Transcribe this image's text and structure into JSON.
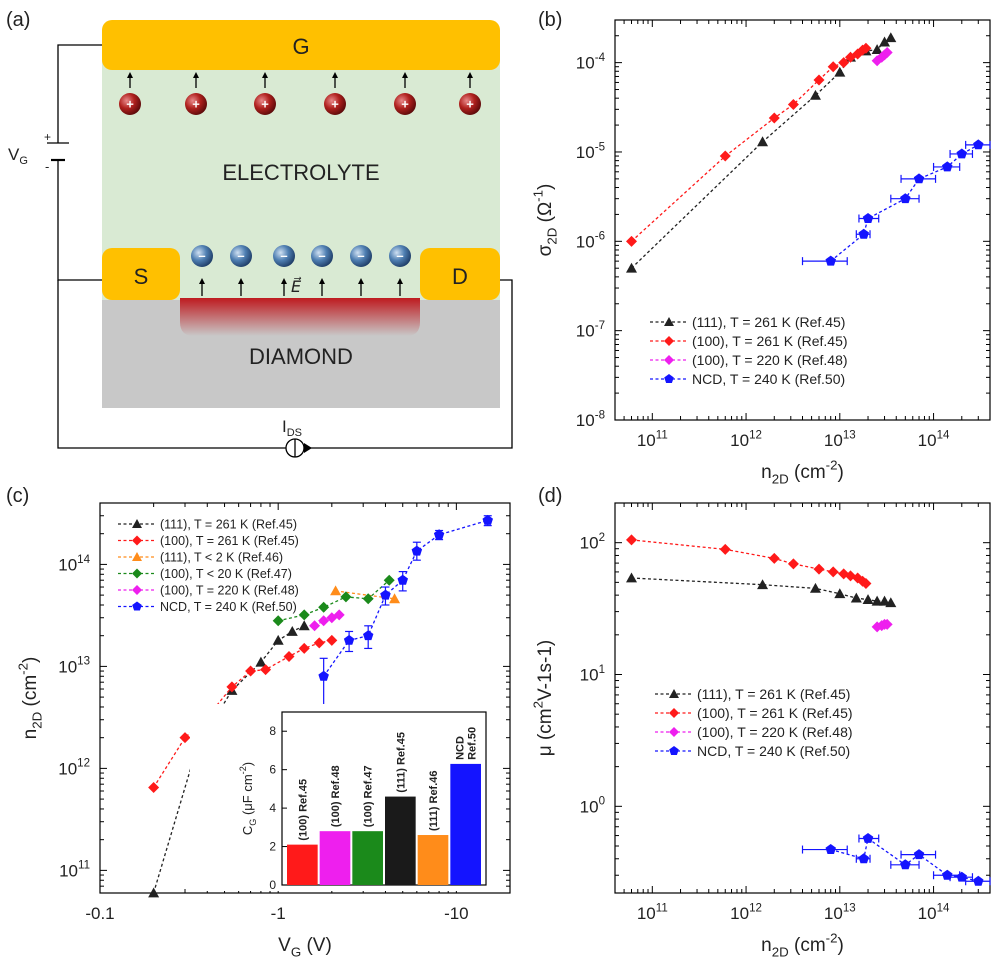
{
  "panel_labels": {
    "a": "(a)",
    "b": "(b)",
    "c": "(c)",
    "d": "(d)"
  },
  "schematic": {
    "gate_label": "G",
    "source_label": "S",
    "drain_label": "D",
    "electrolyte_label": "ELECTROLYTE",
    "diamond_label": "DIAMOND",
    "field_label": "E⃗",
    "vg_label": "V",
    "vg_sub": "G",
    "ids_label": "I",
    "ids_sub": "DS",
    "cation_sign": "+",
    "anion_sign": "–",
    "battery_plus": "+",
    "battery_minus": "-",
    "colors": {
      "gate": "#FFC000",
      "electrolyte": "#D9EAD3",
      "diamond": "#C8C8C8",
      "channel": "#C0161C",
      "cation": "#B0211E",
      "anion": "#4F7FB2"
    }
  },
  "chart_data": [
    {
      "id": "b",
      "type": "scatter",
      "xscale": "log",
      "yscale": "log",
      "xlim": [
        40000000000.0,
        400000000000000.0
      ],
      "ylim": [
        1e-08,
        0.0003
      ],
      "xticks": [
        100000000000.0,
        1000000000000.0,
        10000000000000.0,
        100000000000000.0
      ],
      "xtick_labels": [
        [
          "10",
          "11"
        ],
        [
          "10",
          "12"
        ],
        [
          "10",
          "13"
        ],
        [
          "10",
          "14"
        ]
      ],
      "yticks": [
        1e-08,
        1e-07,
        1e-06,
        1e-05,
        0.0001
      ],
      "ytick_labels": [
        [
          "10",
          "-8"
        ],
        [
          "10",
          "-7"
        ],
        [
          "10",
          "-6"
        ],
        [
          "10",
          "-5"
        ],
        [
          "10",
          "-4"
        ]
      ],
      "xlabel": {
        "main": "n",
        "sub": "2D",
        "unit": " (cm",
        "sup": "-2",
        "end": ")"
      },
      "ylabel": {
        "main": "σ",
        "sub": "2D",
        "unit": " (Ω",
        "sup": "-1",
        "end": ")"
      },
      "legend_position": "bottom-left",
      "series": [
        {
          "name": "(111), T = 261 K (Ref.45)",
          "color": "#222222",
          "marker": "triangle",
          "x": [
            60000000000.0,
            1500000000000.0,
            5500000000000.0,
            10000000000000.0,
            13000000000000.0,
            19000000000000.0,
            25000000000000.0,
            30000000000000.0,
            35000000000000.0
          ],
          "y": [
            5e-07,
            1.3e-05,
            4.3e-05,
            7.8e-05,
            0.000115,
            0.000135,
            0.00014,
            0.00017,
            0.00019
          ]
        },
        {
          "name": "(100), T = 261 K (Ref.45)",
          "color": "#FF1A1A",
          "marker": "diamond",
          "x": [
            60000000000.0,
            600000000000.0,
            2000000000000.0,
            3200000000000.0,
            6000000000000.0,
            8500000000000.0,
            11000000000000.0,
            13000000000000.0,
            15500000000000.0,
            17500000000000.0,
            19000000000000.0
          ],
          "y": [
            1e-06,
            9e-06,
            2.4e-05,
            3.4e-05,
            6.4e-05,
            9e-05,
            0.0001,
            0.000115,
            0.000125,
            0.000138,
            0.000145
          ]
        },
        {
          "name": "(100), T = 220 K (Ref.48)",
          "color": "#EE1FEE",
          "marker": "diamond",
          "x": [
            25000000000000.0,
            28000000000000.0,
            30000000000000.0,
            32000000000000.0
          ],
          "y": [
            0.000105,
            0.000115,
            0.000122,
            0.00013
          ]
        },
        {
          "name": "NCD, T = 240 K (Ref.50)",
          "color": "#1414FF",
          "marker": "pentagon",
          "x": [
            8000000000000.0,
            18000000000000.0,
            20000000000000.0,
            50000000000000.0,
            70000000000000.0,
            140000000000000.0,
            200000000000000.0,
            300000000000000.0
          ],
          "y": [
            6e-07,
            1.2e-06,
            1.8e-06,
            3e-06,
            5e-06,
            6.8e-06,
            9.5e-06,
            1.2e-05
          ],
          "xerr_lo": [
            4000000000000.0,
            3000000000000.0,
            4000000000000.0,
            15000000000000.0,
            25000000000000.0,
            40000000000000.0,
            50000000000000.0,
            80000000000000.0
          ],
          "xerr_hi": [
            4000000000000.0,
            3000000000000.0,
            6000000000000.0,
            20000000000000.0,
            35000000000000.0,
            50000000000000.0,
            60000000000000.0,
            100000000000000.0
          ]
        }
      ]
    },
    {
      "id": "c",
      "type": "scatter",
      "xscale": "log",
      "yscale": "log",
      "xlim": [
        0.1,
        20
      ],
      "ylim": [
        60000000000.0,
        400000000000000.0
      ],
      "xticks": [
        0.1,
        1,
        10
      ],
      "xtick_labels": [
        [
          "-0.1",
          ""
        ],
        [
          "-1",
          ""
        ],
        [
          "-10",
          ""
        ]
      ],
      "yticks": [
        100000000000.0,
        1000000000000.0,
        10000000000000.0,
        100000000000000.0
      ],
      "ytick_labels": [
        [
          "10",
          "11"
        ],
        [
          "10",
          "12"
        ],
        [
          "10",
          "13"
        ],
        [
          "10",
          "14"
        ]
      ],
      "xlabel": {
        "main": "V",
        "sub": "G",
        "unit": " (V)",
        "sup": "",
        "end": ""
      },
      "ylabel": {
        "main": "n",
        "sub": "2D",
        "unit": " (cm",
        "sup": "-2",
        "end": ")"
      },
      "legend_position": "top-left",
      "series": [
        {
          "name": "(111), T = 261 K (Ref.45)",
          "color": "#222222",
          "marker": "triangle",
          "x": [
            0.2,
            0.35,
            0.55,
            0.8,
            1,
            1.2,
            1.4
          ],
          "y": [
            60000000000.0,
            1600000000000.0,
            5800000000000.0,
            11000000000000.0,
            18000000000000.0,
            22000000000000.0,
            25000000000000.0
          ]
        },
        {
          "name": "(100), T = 261 K (Ref.45)",
          "color": "#FF1A1A",
          "marker": "diamond",
          "x": [
            0.2,
            0.3,
            0.4,
            0.55,
            0.7,
            0.85,
            1.15,
            1.4,
            1.7,
            2
          ],
          "y": [
            650000000000.0,
            2000000000000.0,
            3200000000000.0,
            6300000000000.0,
            9000000000000.0,
            9300000000000.0,
            12500000000000.0,
            15000000000000.0,
            17000000000000.0,
            18000000000000.0
          ]
        },
        {
          "name": "(111), T < 2 K    (Ref.46)",
          "color": "#FF8C1A",
          "marker": "triangle",
          "x": [
            2.1,
            4.5
          ],
          "y": [
            55000000000000.0,
            46000000000000.0
          ]
        },
        {
          "name": "(100), T < 20 K   (Ref.47)",
          "color": "#1B8A1B",
          "marker": "diamond",
          "x": [
            1,
            1.4,
            1.8,
            2.4,
            3.2,
            4.2
          ],
          "y": [
            28000000000000.0,
            32000000000000.0,
            38000000000000.0,
            48000000000000.0,
            46000000000000.0,
            70000000000000.0
          ]
        },
        {
          "name": "(100), T = 220 K (Ref.48)",
          "color": "#EE1FEE",
          "marker": "diamond",
          "x": [
            1.6,
            1.8,
            2,
            2.2
          ],
          "y": [
            25000000000000.0,
            28000000000000.0,
            30000000000000.0,
            32000000000000.0
          ]
        },
        {
          "name": "NCD, T = 240 K (Ref.50)",
          "color": "#1414FF",
          "marker": "pentagon",
          "x": [
            1.8,
            2.5,
            3.2,
            4,
            5,
            6,
            8,
            15
          ],
          "y": [
            8000000000000.0,
            18000000000000.0,
            20000000000000.0,
            50000000000000.0,
            70000000000000.0,
            135000000000000.0,
            195000000000000.0,
            270000000000000.0
          ],
          "yerr_lo": [
            4000000000000.0,
            4000000000000.0,
            5000000000000.0,
            10000000000000.0,
            15000000000000.0,
            25000000000000.0,
            20000000000000.0,
            30000000000000.0
          ],
          "yerr_hi": [
            4000000000000.0,
            4000000000000.0,
            5000000000000.0,
            10000000000000.0,
            15000000000000.0,
            30000000000000.0,
            20000000000000.0,
            30000000000000.0
          ]
        }
      ]
    },
    {
      "id": "c-inset",
      "type": "bar",
      "ylim": [
        0,
        9
      ],
      "yticks": [
        0,
        2,
        4,
        6,
        8
      ],
      "ylabel": {
        "main": "C",
        "sub": "G",
        "unit": " (μF cm",
        "sup": "-2",
        "end": ")"
      },
      "categories": [
        "(100) Ref.45",
        "(100) Ref.48",
        "(100) Ref.47",
        "(111) Ref.45",
        "(111) Ref.46",
        "NCD Ref.50"
      ],
      "label_lines": [
        [
          "(100) Ref.45"
        ],
        [
          "(100) Ref.48"
        ],
        [
          "(100) Ref.47"
        ],
        [
          "(111) Ref.45"
        ],
        [
          "(111) Ref.46"
        ],
        [
          "NCD",
          "Ref.50"
        ]
      ],
      "values": [
        2.1,
        2.8,
        2.8,
        4.6,
        2.6,
        6.3
      ],
      "colors": [
        "#FF1A1A",
        "#EE1FEE",
        "#1B8A1B",
        "#1A1A1A",
        "#FF8C1A",
        "#1414FF"
      ]
    },
    {
      "id": "d",
      "type": "scatter",
      "xscale": "log",
      "yscale": "log",
      "xlim": [
        40000000000.0,
        400000000000000.0
      ],
      "ylim": [
        0.22,
        200
      ],
      "xticks": [
        100000000000.0,
        1000000000000.0,
        10000000000000.0,
        100000000000000.0
      ],
      "xtick_labels": [
        [
          "10",
          "11"
        ],
        [
          "10",
          "12"
        ],
        [
          "10",
          "13"
        ],
        [
          "10",
          "14"
        ]
      ],
      "yticks": [
        1,
        10,
        100
      ],
      "ytick_labels": [
        [
          "10",
          "0"
        ],
        [
          "10",
          "1"
        ],
        [
          "10",
          "2"
        ]
      ],
      "xlabel": {
        "main": "n",
        "sub": "2D",
        "unit": " (cm",
        "sup": "-2",
        "end": ")"
      },
      "ylabel": {
        "main": "μ",
        "sub": "",
        "unit": " (cm",
        "sup": "2",
        "end": "V-1s-1)"
      },
      "legend_position": "center-left",
      "series": [
        {
          "name": "(111), T = 261 K (Ref.45)",
          "color": "#222222",
          "marker": "triangle",
          "x": [
            60000000000.0,
            1500000000000.0,
            5500000000000.0,
            10000000000000.0,
            15000000000000.0,
            20000000000000.0,
            25000000000000.0,
            30000000000000.0,
            35000000000000.0
          ],
          "y": [
            54,
            48,
            45,
            41,
            38,
            37,
            36,
            36,
            35
          ]
        },
        {
          "name": "(100), T = 261 K (Ref.45)",
          "color": "#FF1A1A",
          "marker": "diamond",
          "x": [
            60000000000.0,
            600000000000.0,
            2000000000000.0,
            3200000000000.0,
            6000000000000.0,
            8500000000000.0,
            11000000000000.0,
            13000000000000.0,
            15500000000000.0,
            17500000000000.0,
            19000000000000.0
          ],
          "y": [
            105,
            89,
            76,
            69,
            63,
            60,
            58,
            56,
            54,
            51,
            49
          ]
        },
        {
          "name": "(100), T = 220 K (Ref.48)",
          "color": "#EE1FEE",
          "marker": "diamond",
          "x": [
            25000000000000.0,
            28000000000000.0,
            30000000000000.0,
            32000000000000.0
          ],
          "y": [
            23,
            23.5,
            24,
            24
          ]
        },
        {
          "name": "NCD, T = 240 K (Ref.50)",
          "color": "#1414FF",
          "marker": "pentagon",
          "x": [
            8000000000000.0,
            18000000000000.0,
            20000000000000.0,
            50000000000000.0,
            70000000000000.0,
            140000000000000.0,
            200000000000000.0,
            300000000000000.0
          ],
          "y": [
            0.47,
            0.4,
            0.57,
            0.36,
            0.43,
            0.3,
            0.29,
            0.27
          ],
          "xerr_lo": [
            4000000000000.0,
            3000000000000.0,
            4000000000000.0,
            15000000000000.0,
            25000000000000.0,
            40000000000000.0,
            50000000000000.0,
            80000000000000.0
          ],
          "xerr_hi": [
            4000000000000.0,
            3000000000000.0,
            6000000000000.0,
            20000000000000.0,
            35000000000000.0,
            50000000000000.0,
            60000000000000.0,
            100000000000000.0
          ]
        }
      ]
    }
  ]
}
